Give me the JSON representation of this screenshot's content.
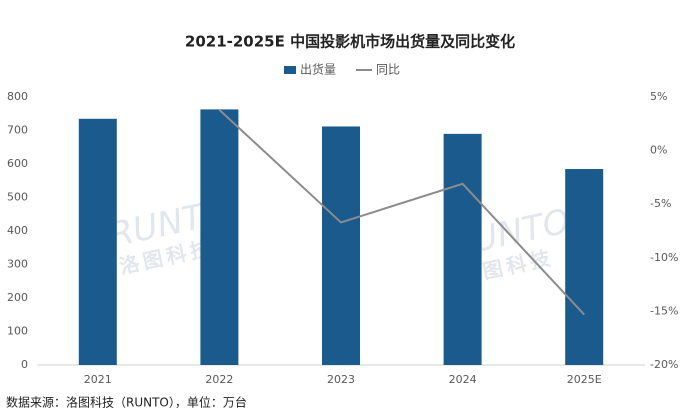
{
  "chart_data": {
    "type": "bar-line",
    "title": "2021-2025E 中国投影机市场出货量及同比变化",
    "categories": [
      "2021",
      "2022",
      "2023",
      "2024",
      "2025E"
    ],
    "series": [
      {
        "name": "出货量",
        "type": "bar",
        "color": "#1b5a8c",
        "values": [
          735,
          763,
          712,
          690,
          585
        ]
      },
      {
        "name": "同比",
        "type": "line",
        "axis": "y2",
        "color": "#8c8c8c",
        "values": [
          null,
          3.8,
          -6.7,
          -3.1,
          -15.3
        ]
      }
    ],
    "ylim": [
      0,
      800
    ],
    "yticks": [
      0,
      100,
      200,
      300,
      400,
      500,
      600,
      700,
      800
    ],
    "y2lim": [
      -20,
      5
    ],
    "y2ticks": [
      {
        "value": -20,
        "label": "-20%"
      },
      {
        "value": -15,
        "label": "-15%"
      },
      {
        "value": -10,
        "label": "-10%"
      },
      {
        "value": -5,
        "label": "-5%"
      },
      {
        "value": 0,
        "label": "0%"
      },
      {
        "value": 5,
        "label": "5%"
      }
    ],
    "watermark": "RUNTO",
    "watermark_subtitle": "洛图科技",
    "source": "数据来源：洛图科技（RUNTO），单位：万台"
  }
}
